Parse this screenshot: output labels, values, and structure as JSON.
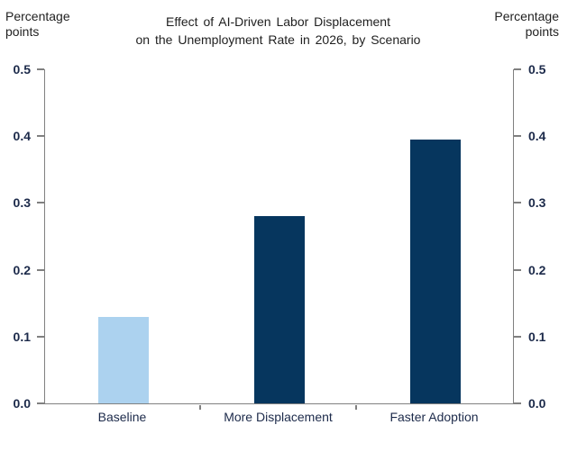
{
  "chart_data": {
    "type": "bar",
    "title": "Effect of AI-Driven Labor Displacement on the Unemployment Rate in 2026, by Scenario",
    "title_lines": [
      "Effect of AI-Driven Labor Displacement",
      "on the Unemployment Rate in 2026, by Scenario"
    ],
    "ylabel_left": "Percentage points",
    "ylabel_right": "Percentage points",
    "categories": [
      "Baseline",
      "More Displacement",
      "Faster Adoption"
    ],
    "values": [
      0.13,
      0.28,
      0.395
    ],
    "bar_colors": [
      "#ACD2EF",
      "#06365E",
      "#06365E"
    ],
    "ylim": [
      0,
      0.5
    ],
    "ytick_labels": [
      "0.0",
      "0.1",
      "0.2",
      "0.3",
      "0.4",
      "0.5"
    ],
    "grid": false,
    "legend": "none"
  },
  "colors": {
    "axis": "#808080",
    "tick_text": "#1C2A4A",
    "title_text": "#1F1F1F",
    "background": "#FFFFFF"
  }
}
